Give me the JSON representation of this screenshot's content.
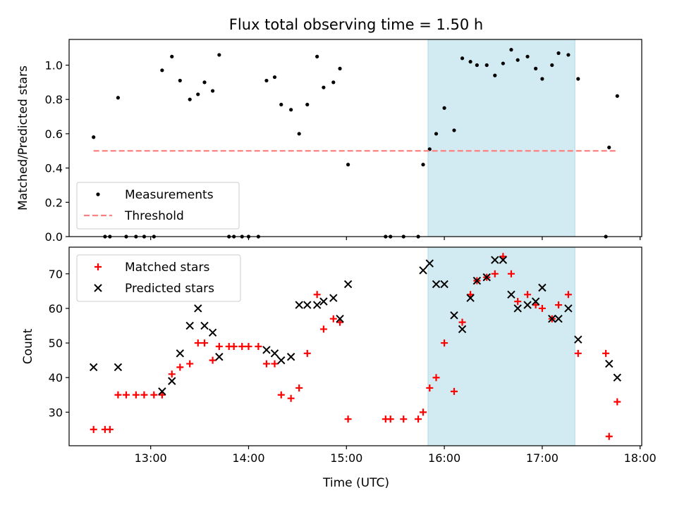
{
  "figure": {
    "title": "Flux total observing time = 1.50 h",
    "xlabel": "Time (UTC)",
    "x_tick_labels": [
      "13:00",
      "14:00",
      "15:00",
      "16:00",
      "17:00",
      "18:00"
    ],
    "highlight_color": "#add8e6",
    "highlight_span": [
      "15:50",
      "17:20"
    ]
  },
  "chart_data": [
    {
      "type": "scatter",
      "ylabel": "Matched/Predicted stars",
      "xlim": [
        "12:10",
        "18:01"
      ],
      "ylim": [
        0,
        1.15
      ],
      "y_ticks": [
        "0.0",
        "0.2",
        "0.4",
        "0.6",
        "0.8",
        "1.0"
      ],
      "legend_position": "lower-left",
      "series": [
        {
          "name": "Measurements",
          "marker": "dot",
          "color": "#000000",
          "points": [
            [
              "12:25",
              0.58
            ],
            [
              "12:32",
              0.0
            ],
            [
              "12:35",
              0.0
            ],
            [
              "12:40",
              0.81
            ],
            [
              "12:45",
              0.0
            ],
            [
              "12:51",
              0.0
            ],
            [
              "12:56",
              0.0
            ],
            [
              "13:02",
              0.0
            ],
            [
              "13:07",
              0.97
            ],
            [
              "13:13",
              1.05
            ],
            [
              "13:18",
              0.91
            ],
            [
              "13:24",
              0.8
            ],
            [
              "13:29",
              0.83
            ],
            [
              "13:33",
              0.9
            ],
            [
              "13:38",
              0.85
            ],
            [
              "13:42",
              1.06
            ],
            [
              "13:48",
              0.0
            ],
            [
              "13:51",
              0.0
            ],
            [
              "13:56",
              0.0
            ],
            [
              "14:00",
              0.0
            ],
            [
              "14:06",
              0.0
            ],
            [
              "14:11",
              0.91
            ],
            [
              "14:16",
              0.93
            ],
            [
              "14:20",
              0.77
            ],
            [
              "14:26",
              0.74
            ],
            [
              "14:31",
              0.6
            ],
            [
              "14:36",
              0.77
            ],
            [
              "14:42",
              1.05
            ],
            [
              "14:46",
              0.87
            ],
            [
              "14:52",
              0.9
            ],
            [
              "14:56",
              0.98
            ],
            [
              "15:01",
              0.42
            ],
            [
              "15:24",
              0.0
            ],
            [
              "15:27",
              0.0
            ],
            [
              "15:35",
              0.0
            ],
            [
              "15:44",
              0.0
            ],
            [
              "15:47",
              0.42
            ],
            [
              "15:51",
              0.51
            ],
            [
              "15:55",
              0.6
            ],
            [
              "16:00",
              0.75
            ],
            [
              "16:06",
              0.62
            ],
            [
              "16:11",
              1.04
            ],
            [
              "16:16",
              1.02
            ],
            [
              "16:20",
              1.0
            ],
            [
              "16:26",
              1.0
            ],
            [
              "16:31",
              0.94
            ],
            [
              "16:36",
              1.01
            ],
            [
              "16:41",
              1.09
            ],
            [
              "16:45",
              1.03
            ],
            [
              "16:51",
              1.05
            ],
            [
              "16:56",
              0.98
            ],
            [
              "17:00",
              0.92
            ],
            [
              "17:06",
              1.0
            ],
            [
              "17:10",
              1.07
            ],
            [
              "17:16",
              1.06
            ],
            [
              "17:22",
              0.92
            ],
            [
              "17:39",
              0.0
            ],
            [
              "17:41",
              0.52
            ],
            [
              "17:46",
              0.82
            ]
          ]
        },
        {
          "name": "Threshold",
          "marker": "dashed-line",
          "color": "#ff8080",
          "points": [
            [
              "12:25",
              0.5
            ],
            [
              "17:46",
              0.5
            ]
          ]
        }
      ]
    },
    {
      "type": "scatter",
      "ylabel": "Count",
      "xlim": [
        "12:10",
        "18:01"
      ],
      "ylim": [
        20.3,
        77.7
      ],
      "y_ticks": [
        "30",
        "40",
        "50",
        "60",
        "70"
      ],
      "legend_position": "upper-left",
      "series": [
        {
          "name": "Matched stars",
          "marker": "plus",
          "color": "#ff0000",
          "points": [
            [
              "12:25",
              25
            ],
            [
              "12:32",
              25
            ],
            [
              "12:35",
              25
            ],
            [
              "12:40",
              35
            ],
            [
              "12:45",
              35
            ],
            [
              "12:51",
              35
            ],
            [
              "12:56",
              35
            ],
            [
              "13:02",
              35
            ],
            [
              "13:07",
              35
            ],
            [
              "13:13",
              41
            ],
            [
              "13:18",
              43
            ],
            [
              "13:24",
              44
            ],
            [
              "13:29",
              50
            ],
            [
              "13:33",
              50
            ],
            [
              "13:38",
              45
            ],
            [
              "13:42",
              49
            ],
            [
              "13:48",
              49
            ],
            [
              "13:51",
              49
            ],
            [
              "13:56",
              49
            ],
            [
              "14:00",
              49
            ],
            [
              "14:06",
              49
            ],
            [
              "14:11",
              44
            ],
            [
              "14:16",
              44
            ],
            [
              "14:20",
              35
            ],
            [
              "14:26",
              34
            ],
            [
              "14:31",
              37
            ],
            [
              "14:36",
              47
            ],
            [
              "14:42",
              64
            ],
            [
              "14:46",
              54
            ],
            [
              "14:52",
              57
            ],
            [
              "14:56",
              56
            ],
            [
              "15:01",
              28
            ],
            [
              "15:24",
              28
            ],
            [
              "15:27",
              28
            ],
            [
              "15:35",
              28
            ],
            [
              "15:44",
              28
            ],
            [
              "15:47",
              30
            ],
            [
              "15:51",
              37
            ],
            [
              "15:55",
              40
            ],
            [
              "16:00",
              50
            ],
            [
              "16:06",
              36
            ],
            [
              "16:11",
              56
            ],
            [
              "16:16",
              64
            ],
            [
              "16:20",
              68
            ],
            [
              "16:26",
              69
            ],
            [
              "16:31",
              70
            ],
            [
              "16:36",
              75
            ],
            [
              "16:41",
              70
            ],
            [
              "16:45",
              62
            ],
            [
              "16:51",
              64
            ],
            [
              "16:56",
              61
            ],
            [
              "17:00",
              60
            ],
            [
              "17:06",
              57
            ],
            [
              "17:10",
              61
            ],
            [
              "17:16",
              64
            ],
            [
              "17:22",
              47
            ],
            [
              "17:39",
              47
            ],
            [
              "17:41",
              23
            ],
            [
              "17:46",
              33
            ]
          ]
        },
        {
          "name": "Predicted stars",
          "marker": "x",
          "color": "#000000",
          "points": [
            [
              "12:25",
              43
            ],
            [
              "12:40",
              43
            ],
            [
              "13:07",
              36
            ],
            [
              "13:13",
              39
            ],
            [
              "13:18",
              47
            ],
            [
              "13:24",
              55
            ],
            [
              "13:29",
              60
            ],
            [
              "13:33",
              55
            ],
            [
              "13:38",
              53
            ],
            [
              "13:42",
              46
            ],
            [
              "14:11",
              48
            ],
            [
              "14:16",
              47
            ],
            [
              "14:20",
              45
            ],
            [
              "14:26",
              46
            ],
            [
              "14:31",
              61
            ],
            [
              "14:36",
              61
            ],
            [
              "14:42",
              61
            ],
            [
              "14:46",
              62
            ],
            [
              "14:52",
              63
            ],
            [
              "14:56",
              57
            ],
            [
              "15:01",
              67
            ],
            [
              "15:47",
              71
            ],
            [
              "15:51",
              73
            ],
            [
              "15:55",
              67
            ],
            [
              "16:00",
              67
            ],
            [
              "16:06",
              58
            ],
            [
              "16:11",
              54
            ],
            [
              "16:16",
              63
            ],
            [
              "16:20",
              68
            ],
            [
              "16:26",
              69
            ],
            [
              "16:31",
              74
            ],
            [
              "16:36",
              74
            ],
            [
              "16:41",
              64
            ],
            [
              "16:45",
              60
            ],
            [
              "16:51",
              61
            ],
            [
              "16:56",
              62
            ],
            [
              "17:00",
              66
            ],
            [
              "17:06",
              57
            ],
            [
              "17:10",
              57
            ],
            [
              "17:16",
              60
            ],
            [
              "17:22",
              51
            ],
            [
              "17:41",
              44
            ],
            [
              "17:46",
              40
            ]
          ]
        }
      ]
    }
  ]
}
